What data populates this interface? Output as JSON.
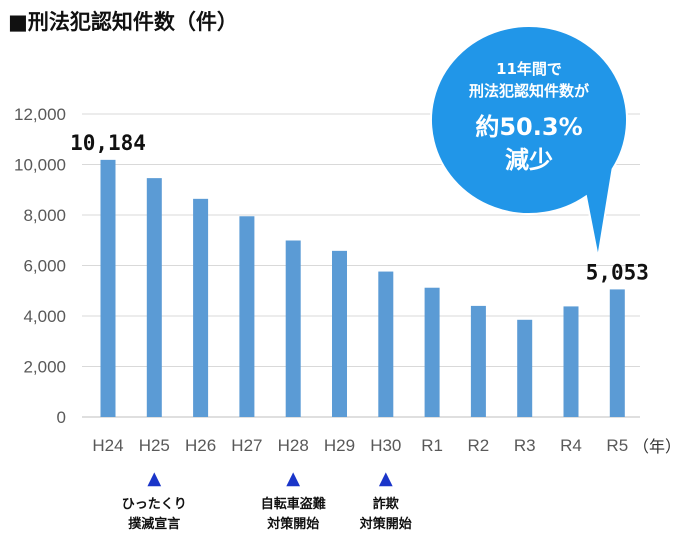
{
  "title": "■刑法犯認知件数（件）",
  "chart_data": {
    "type": "bar",
    "categories": [
      "H24",
      "H25",
      "H26",
      "H27",
      "H28",
      "H29",
      "H30",
      "R1",
      "R2",
      "R3",
      "R4",
      "R5"
    ],
    "values": [
      10184,
      9460,
      8640,
      7950,
      6990,
      6580,
      5760,
      5120,
      4400,
      3850,
      4380,
      5053
    ],
    "ylim": [
      0,
      12000
    ],
    "yticks": [
      "0",
      "2,000",
      "4,000",
      "6,000",
      "8,000",
      "10,000",
      "12,000"
    ],
    "grid": true,
    "bar_color": "#5b9bd5",
    "x_unit": "（年）",
    "data_labels": [
      {
        "index": 0,
        "text": "10,184"
      },
      {
        "index": 11,
        "text": "5,053"
      }
    ]
  },
  "annotations": [
    {
      "index": 1,
      "marker": "▲",
      "lines": [
        "ひったくり",
        "撲滅宣言"
      ]
    },
    {
      "index": 4,
      "marker": "▲",
      "lines": [
        "自転車盗難",
        "対策開始"
      ]
    },
    {
      "index": 6,
      "marker": "▲",
      "lines": [
        "詐欺",
        "対策開始"
      ]
    }
  ],
  "callout": {
    "line1": "11年間で",
    "line2": "刑法犯認知件数が",
    "line3": "約50.3%",
    "line4": "減少",
    "color": "#2196e8"
  },
  "colors": {
    "marker": "#1a35c9",
    "grid": "#d9d9d9",
    "axis": "#bfbfbf"
  }
}
